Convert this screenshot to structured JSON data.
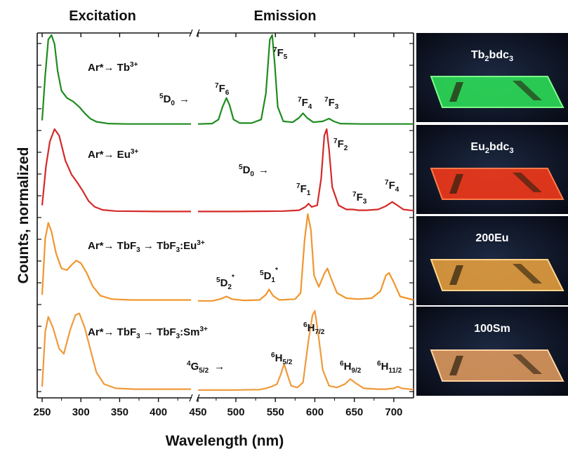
{
  "chart_data": {
    "type": "line",
    "panel_titles": {
      "excitation": "Excitation",
      "emission": "Emission"
    },
    "xlabel": "Wavelength (nm)",
    "ylabel": "Counts, normalized",
    "xlim": [
      250,
      725
    ],
    "axis_break": [
      442,
      452
    ],
    "xticks": [
      250,
      300,
      350,
      400,
      450,
      500,
      550,
      600,
      650,
      700
    ],
    "colors": {
      "green": "#1e8c1e",
      "red": "#d42a2a",
      "orange": "#f0962e",
      "orange2": "#ef9a3a"
    },
    "series": [
      {
        "key": "tb",
        "color": "green",
        "excitation": [
          [
            250,
            0.05
          ],
          [
            254,
            0.55
          ],
          [
            258,
            0.95
          ],
          [
            262,
            1.0
          ],
          [
            266,
            0.9
          ],
          [
            270,
            0.6
          ],
          [
            275,
            0.38
          ],
          [
            282,
            0.3
          ],
          [
            290,
            0.26
          ],
          [
            298,
            0.2
          ],
          [
            305,
            0.13
          ],
          [
            312,
            0.07
          ],
          [
            320,
            0.035
          ],
          [
            335,
            0.015
          ],
          [
            360,
            0.01
          ],
          [
            400,
            0.01
          ],
          [
            442,
            0.01
          ]
        ],
        "emission": [
          [
            452,
            0.01
          ],
          [
            470,
            0.015
          ],
          [
            478,
            0.06
          ],
          [
            483,
            0.2
          ],
          [
            488,
            0.3
          ],
          [
            492,
            0.22
          ],
          [
            497,
            0.06
          ],
          [
            505,
            0.02
          ],
          [
            520,
            0.02
          ],
          [
            532,
            0.06
          ],
          [
            538,
            0.35
          ],
          [
            543,
            0.95
          ],
          [
            546,
            1.0
          ],
          [
            549,
            0.7
          ],
          [
            553,
            0.2
          ],
          [
            560,
            0.04
          ],
          [
            572,
            0.03
          ],
          [
            580,
            0.08
          ],
          [
            585,
            0.13
          ],
          [
            590,
            0.08
          ],
          [
            598,
            0.03
          ],
          [
            610,
            0.04
          ],
          [
            618,
            0.07
          ],
          [
            624,
            0.04
          ],
          [
            632,
            0.015
          ],
          [
            660,
            0.01
          ],
          [
            700,
            0.01
          ],
          [
            725,
            0.01
          ]
        ]
      },
      {
        "key": "eu",
        "color": "red",
        "excitation": [
          [
            250,
            0.08
          ],
          [
            255,
            0.55
          ],
          [
            260,
            0.85
          ],
          [
            266,
            1.0
          ],
          [
            272,
            0.92
          ],
          [
            280,
            0.62
          ],
          [
            288,
            0.45
          ],
          [
            295,
            0.36
          ],
          [
            302,
            0.26
          ],
          [
            310,
            0.13
          ],
          [
            318,
            0.06
          ],
          [
            328,
            0.025
          ],
          [
            345,
            0.01
          ],
          [
            400,
            0.005
          ],
          [
            442,
            0.005
          ]
        ],
        "emission": [
          [
            452,
            0.005
          ],
          [
            500,
            0.005
          ],
          [
            560,
            0.01
          ],
          [
            580,
            0.02
          ],
          [
            588,
            0.06
          ],
          [
            592,
            0.1
          ],
          [
            596,
            0.06
          ],
          [
            603,
            0.08
          ],
          [
            608,
            0.4
          ],
          [
            612,
            0.92
          ],
          [
            615,
            1.0
          ],
          [
            618,
            0.75
          ],
          [
            622,
            0.3
          ],
          [
            630,
            0.08
          ],
          [
            640,
            0.03
          ],
          [
            648,
            0.03
          ],
          [
            655,
            0.02
          ],
          [
            665,
            0.02
          ],
          [
            680,
            0.03
          ],
          [
            690,
            0.07
          ],
          [
            698,
            0.12
          ],
          [
            703,
            0.09
          ],
          [
            712,
            0.03
          ],
          [
            725,
            0.015
          ]
        ]
      },
      {
        "key": "tbeu",
        "color": "orange",
        "excitation": [
          [
            250,
            0.08
          ],
          [
            254,
            0.72
          ],
          [
            258,
            0.9
          ],
          [
            262,
            0.8
          ],
          [
            268,
            0.55
          ],
          [
            275,
            0.38
          ],
          [
            282,
            0.36
          ],
          [
            288,
            0.42
          ],
          [
            294,
            0.47
          ],
          [
            300,
            0.44
          ],
          [
            308,
            0.32
          ],
          [
            315,
            0.18
          ],
          [
            325,
            0.07
          ],
          [
            340,
            0.03
          ],
          [
            365,
            0.02
          ],
          [
            400,
            0.02
          ],
          [
            442,
            0.02
          ]
        ],
        "emission": [
          [
            452,
            0.01
          ],
          [
            470,
            0.01
          ],
          [
            480,
            0.03
          ],
          [
            488,
            0.06
          ],
          [
            495,
            0.03
          ],
          [
            510,
            0.015
          ],
          [
            530,
            0.02
          ],
          [
            538,
            0.08
          ],
          [
            542,
            0.14
          ],
          [
            547,
            0.07
          ],
          [
            555,
            0.02
          ],
          [
            575,
            0.03
          ],
          [
            582,
            0.1
          ],
          [
            587,
            0.7
          ],
          [
            591,
            1.0
          ],
          [
            595,
            0.82
          ],
          [
            599,
            0.3
          ],
          [
            605,
            0.17
          ],
          [
            612,
            0.32
          ],
          [
            616,
            0.38
          ],
          [
            620,
            0.28
          ],
          [
            628,
            0.1
          ],
          [
            640,
            0.04
          ],
          [
            655,
            0.03
          ],
          [
            672,
            0.04
          ],
          [
            683,
            0.12
          ],
          [
            690,
            0.3
          ],
          [
            694,
            0.33
          ],
          [
            700,
            0.22
          ],
          [
            708,
            0.06
          ],
          [
            725,
            0.02
          ]
        ]
      },
      {
        "key": "tbsm",
        "color": "orange2",
        "excitation": [
          [
            250,
            0.05
          ],
          [
            254,
            0.7
          ],
          [
            258,
            0.88
          ],
          [
            264,
            0.75
          ],
          [
            272,
            0.5
          ],
          [
            278,
            0.44
          ],
          [
            286,
            0.72
          ],
          [
            293,
            0.9
          ],
          [
            298,
            0.92
          ],
          [
            305,
            0.75
          ],
          [
            312,
            0.5
          ],
          [
            320,
            0.22
          ],
          [
            330,
            0.08
          ],
          [
            345,
            0.03
          ],
          [
            370,
            0.02
          ],
          [
            400,
            0.02
          ],
          [
            442,
            0.02
          ]
        ],
        "emission": [
          [
            452,
            0.01
          ],
          [
            500,
            0.01
          ],
          [
            530,
            0.015
          ],
          [
            538,
            0.03
          ],
          [
            545,
            0.05
          ],
          [
            552,
            0.08
          ],
          [
            557,
            0.2
          ],
          [
            561,
            0.32
          ],
          [
            565,
            0.2
          ],
          [
            570,
            0.06
          ],
          [
            578,
            0.04
          ],
          [
            585,
            0.1
          ],
          [
            592,
            0.6
          ],
          [
            597,
            0.9
          ],
          [
            600,
            0.95
          ],
          [
            604,
            0.7
          ],
          [
            610,
            0.25
          ],
          [
            618,
            0.06
          ],
          [
            628,
            0.04
          ],
          [
            638,
            0.08
          ],
          [
            645,
            0.14
          ],
          [
            652,
            0.09
          ],
          [
            662,
            0.03
          ],
          [
            680,
            0.02
          ],
          [
            690,
            0.02
          ],
          [
            700,
            0.03
          ],
          [
            705,
            0.05
          ],
          [
            710,
            0.03
          ],
          [
            725,
            0.015
          ]
        ]
      }
    ]
  },
  "annotations": {
    "tb_path": [
      "Ar*",
      "→ Tb",
      "3+"
    ],
    "tb_d0": [
      "5",
      "D",
      "0",
      "→"
    ],
    "tb_f6": [
      "7",
      "F",
      "6"
    ],
    "tb_f5": [
      "7",
      "F",
      "5"
    ],
    "tb_f4": [
      "7",
      "F",
      "4"
    ],
    "tb_f3": [
      "7",
      "F",
      "3"
    ],
    "eu_path": [
      "Ar*",
      "→ Eu",
      "3+"
    ],
    "eu_d0": [
      "5",
      "D",
      "0",
      "→"
    ],
    "eu_f2": [
      "7",
      "F",
      "2"
    ],
    "eu_f1": [
      "7",
      "F",
      "1"
    ],
    "eu_f3": [
      "7",
      "F",
      "3"
    ],
    "eu_f4": [
      "7",
      "F",
      "4"
    ],
    "tbeu_path": [
      "Ar*",
      "→ TbF",
      "3",
      " → TbF",
      "3",
      ":Eu",
      "3+"
    ],
    "tbeu_d2": [
      "5",
      "D",
      "2",
      "*"
    ],
    "tbeu_d1": [
      "5",
      "D",
      "1",
      "*"
    ],
    "tbsm_path": [
      "Ar*",
      "→ TbF",
      "3",
      " → TbF",
      "3",
      ":Sm",
      "3+"
    ],
    "tbsm_g52": [
      "4",
      "G",
      "5/2",
      "→"
    ],
    "tbsm_h52": [
      "6",
      "H",
      "5/2"
    ],
    "tbsm_h72": [
      "6",
      "H",
      "7/2"
    ],
    "tbsm_h92": [
      "6",
      "H",
      "9/2"
    ],
    "tbsm_h112": [
      "6",
      "H",
      "11/2"
    ]
  },
  "photos": [
    {
      "label": [
        "Tb",
        "2",
        "bdc",
        "3"
      ],
      "glow": "#2ee85a",
      "edge": "#7dff8a"
    },
    {
      "label": [
        "Eu",
        "2",
        "bdc",
        "3"
      ],
      "glow": "#ff3b1a",
      "edge": "#ff7a4a"
    },
    {
      "label": [
        "200Eu"
      ],
      "glow": "#f0a640",
      "edge": "#ffd48a"
    },
    {
      "label": [
        "100Sm"
      ],
      "glow": "#e8a060",
      "edge": "#ffd0a0"
    }
  ]
}
